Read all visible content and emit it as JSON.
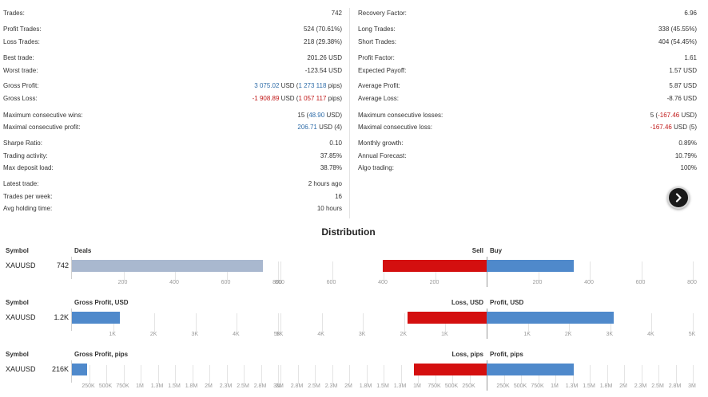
{
  "stats_left": [
    {
      "label": "Trades:",
      "value": "742"
    },
    {
      "label": "Profit Trades:",
      "value": "524 (70.61%)"
    },
    {
      "label": "Loss Trades:",
      "value": "218 (29.38%)"
    },
    {
      "label": "Best trade:",
      "value": "201.26 USD",
      "color": "blue"
    },
    {
      "label": "Worst trade:",
      "value": "-123.54 USD",
      "color": "red"
    },
    {
      "label": "Gross Profit:",
      "parts": [
        {
          "t": "3 075.02",
          "c": "blue"
        },
        {
          "t": " USD ("
        },
        {
          "t": "1 273 118",
          "c": "blue"
        },
        {
          "t": " pips)"
        }
      ]
    },
    {
      "label": "Gross Loss:",
      "parts": [
        {
          "t": "-1 908.89",
          "c": "red"
        },
        {
          "t": " USD ("
        },
        {
          "t": "1 057 117",
          "c": "red"
        },
        {
          "t": " pips)"
        }
      ]
    },
    {
      "label": "Maximum consecutive wins:",
      "parts": [
        {
          "t": "15 ("
        },
        {
          "t": "48.90",
          "c": "blue"
        },
        {
          "t": " USD)"
        }
      ]
    },
    {
      "label": "Maximal consecutive profit:",
      "parts": [
        {
          "t": "206.71",
          "c": "blue"
        },
        {
          "t": " USD (4)"
        }
      ]
    },
    {
      "label": "Sharpe Ratio:",
      "value": "0.10"
    },
    {
      "label": "Trading activity:",
      "value": "37.85%"
    },
    {
      "label": "Max deposit load:",
      "value": "38.78%"
    },
    {
      "label": "Latest trade:",
      "value": "2 hours ago"
    },
    {
      "label": "Trades per week:",
      "value": "16"
    },
    {
      "label": "Avg holding time:",
      "value": "10 hours"
    }
  ],
  "stats_right": [
    {
      "label": "Recovery Factor:",
      "value": "6.96"
    },
    {
      "label": "Long Trades:",
      "value": "338 (45.55%)"
    },
    {
      "label": "Short Trades:",
      "value": "404 (54.45%)"
    },
    {
      "label": "Profit Factor:",
      "value": "1.61"
    },
    {
      "label": "Expected Payoff:",
      "value": "1.57 USD",
      "color": "blue"
    },
    {
      "label": "Average Profit:",
      "value": "5.87 USD",
      "color": "blue"
    },
    {
      "label": "Average Loss:",
      "value": "-8.76 USD",
      "color": "red"
    },
    {
      "label": "Maximum consecutive losses:",
      "parts": [
        {
          "t": "5 ("
        },
        {
          "t": "-167.46",
          "c": "red"
        },
        {
          "t": " USD)"
        }
      ]
    },
    {
      "label": "Maximal consecutive loss:",
      "parts": [
        {
          "t": "-167.46",
          "c": "red"
        },
        {
          "t": " USD (5)"
        }
      ]
    },
    {
      "label": "Monthly growth:",
      "value": "0.89%",
      "color": "blue"
    },
    {
      "label": "Annual Forecast:",
      "value": "10.79%",
      "color": "blue"
    },
    {
      "label": "Algo trading:",
      "value": "100%"
    }
  ],
  "distribution": {
    "title": "Distribution",
    "symbol_header": "Symbol",
    "sections": [
      {
        "symbol": "XAUUSD",
        "total": "742",
        "main_header": "Deals",
        "left_header": "Sell",
        "right_header": "Buy",
        "main_ticks": [
          "200",
          "400",
          "600",
          "800"
        ],
        "left_ticks": [
          "800",
          "600",
          "400",
          "200"
        ],
        "right_ticks": [
          "200",
          "400",
          "600",
          "800"
        ]
      },
      {
        "symbol": "XAUUSD",
        "total": "1.2K",
        "main_header": "Gross Profit, USD",
        "left_header": "Loss, USD",
        "right_header": "Profit, USD",
        "main_ticks": [
          "1K",
          "2K",
          "3K",
          "4K",
          "5K"
        ],
        "left_ticks": [
          "5K",
          "4K",
          "3K",
          "2K",
          "1K"
        ],
        "right_ticks": [
          "1K",
          "2K",
          "3K",
          "4K",
          "5K"
        ]
      },
      {
        "symbol": "XAUUSD",
        "total": "216K",
        "main_header": "Gross Profit, pips",
        "left_header": "Loss, pips",
        "right_header": "Profit, pips",
        "main_ticks": [
          "250K",
          "500K",
          "750K",
          "1M",
          "1.3M",
          "1.5M",
          "1.8M",
          "2M",
          "2.3M",
          "2.5M",
          "2.8M",
          "3M"
        ],
        "left_ticks": [
          "3M",
          "2.8M",
          "2.5M",
          "2.3M",
          "2M",
          "1.8M",
          "1.5M",
          "1.3M",
          "1M",
          "750K",
          "500K",
          "250K"
        ],
        "right_ticks": [
          "250K",
          "500K",
          "750K",
          "1M",
          "1.3M",
          "1.5M",
          "1.8M",
          "2M",
          "2.3M",
          "2.5M",
          "2.8M",
          "3M"
        ]
      }
    ]
  },
  "chart_data": [
    {
      "type": "bar",
      "title": "Deals",
      "categories": [
        "XAUUSD"
      ],
      "values": [
        742
      ],
      "xlim": [
        0,
        800
      ]
    },
    {
      "type": "bar",
      "title": "Sell / Buy",
      "series": [
        {
          "name": "Sell",
          "values": [
            404
          ]
        },
        {
          "name": "Buy",
          "values": [
            338
          ]
        }
      ],
      "categories": [
        "XAUUSD"
      ],
      "xlim": [
        0,
        800
      ]
    },
    {
      "type": "bar",
      "title": "Gross Profit, USD",
      "categories": [
        "XAUUSD"
      ],
      "values": [
        1166
      ],
      "xlim": [
        0,
        5000
      ]
    },
    {
      "type": "bar",
      "title": "Loss, USD / Profit, USD",
      "series": [
        {
          "name": "Loss, USD",
          "values": [
            1909
          ]
        },
        {
          "name": "Profit, USD",
          "values": [
            3075
          ]
        }
      ],
      "categories": [
        "XAUUSD"
      ],
      "xlim": [
        0,
        5000
      ]
    },
    {
      "type": "bar",
      "title": "Gross Profit, pips",
      "categories": [
        "XAUUSD"
      ],
      "values": [
        216001
      ],
      "xlim": [
        0,
        3000000
      ]
    },
    {
      "type": "bar",
      "title": "Loss, pips / Profit, pips",
      "series": [
        {
          "name": "Loss, pips",
          "values": [
            1057117
          ]
        },
        {
          "name": "Profit, pips",
          "values": [
            1273118
          ]
        }
      ],
      "categories": [
        "XAUUSD"
      ],
      "xlim": [
        0,
        3000000
      ]
    }
  ],
  "colors": {
    "gray_bar": "#a9b8cf",
    "sell_bar": "#d40f0f",
    "buy_bar": "#4f89cb",
    "blue_text": "#2e6ca8",
    "red_text": "#c01818"
  },
  "icons": {
    "scroll_button": "chevron-right-icon"
  }
}
